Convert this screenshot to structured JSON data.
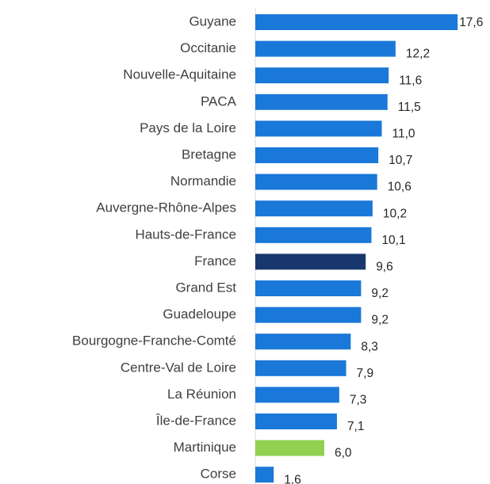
{
  "chart_data": {
    "type": "bar",
    "orientation": "horizontal",
    "categories": [
      "Guyane",
      "Occitanie",
      "Nouvelle-Aquitaine",
      "PACA",
      "Pays de la Loire",
      "Bretagne",
      "Normandie",
      "Auvergne-Rhône-Alpes",
      "Hauts-de-France",
      "France",
      "Grand Est",
      "Guadeloupe",
      "Bourgogne-Franche-Comté",
      "Centre-Val de Loire",
      "La Réunion",
      "Île-de-France",
      "Martinique",
      "Corse"
    ],
    "values": [
      17.6,
      12.2,
      11.6,
      11.5,
      11.0,
      10.7,
      10.6,
      10.2,
      10.1,
      9.6,
      9.2,
      9.2,
      8.3,
      7.9,
      7.3,
      7.1,
      6.0,
      1.6
    ],
    "value_labels": [
      "17,6",
      "12,2",
      "11,6",
      "11,5",
      "11,0",
      "10,7",
      "10,6",
      "10,2",
      "10,1",
      "9,6",
      "9,2",
      "9,2",
      "8,3",
      "7,9",
      "7,3",
      "7,1",
      "6,0",
      "1,6"
    ],
    "colors": [
      "#1a78d8",
      "#1a78d8",
      "#1a78d8",
      "#1a78d8",
      "#1a78d8",
      "#1a78d8",
      "#1a78d8",
      "#1a78d8",
      "#1a78d8",
      "#17376e",
      "#1a78d8",
      "#1a78d8",
      "#1a78d8",
      "#1a78d8",
      "#1a78d8",
      "#1a78d8",
      "#92d050",
      "#1a78d8"
    ]
  }
}
